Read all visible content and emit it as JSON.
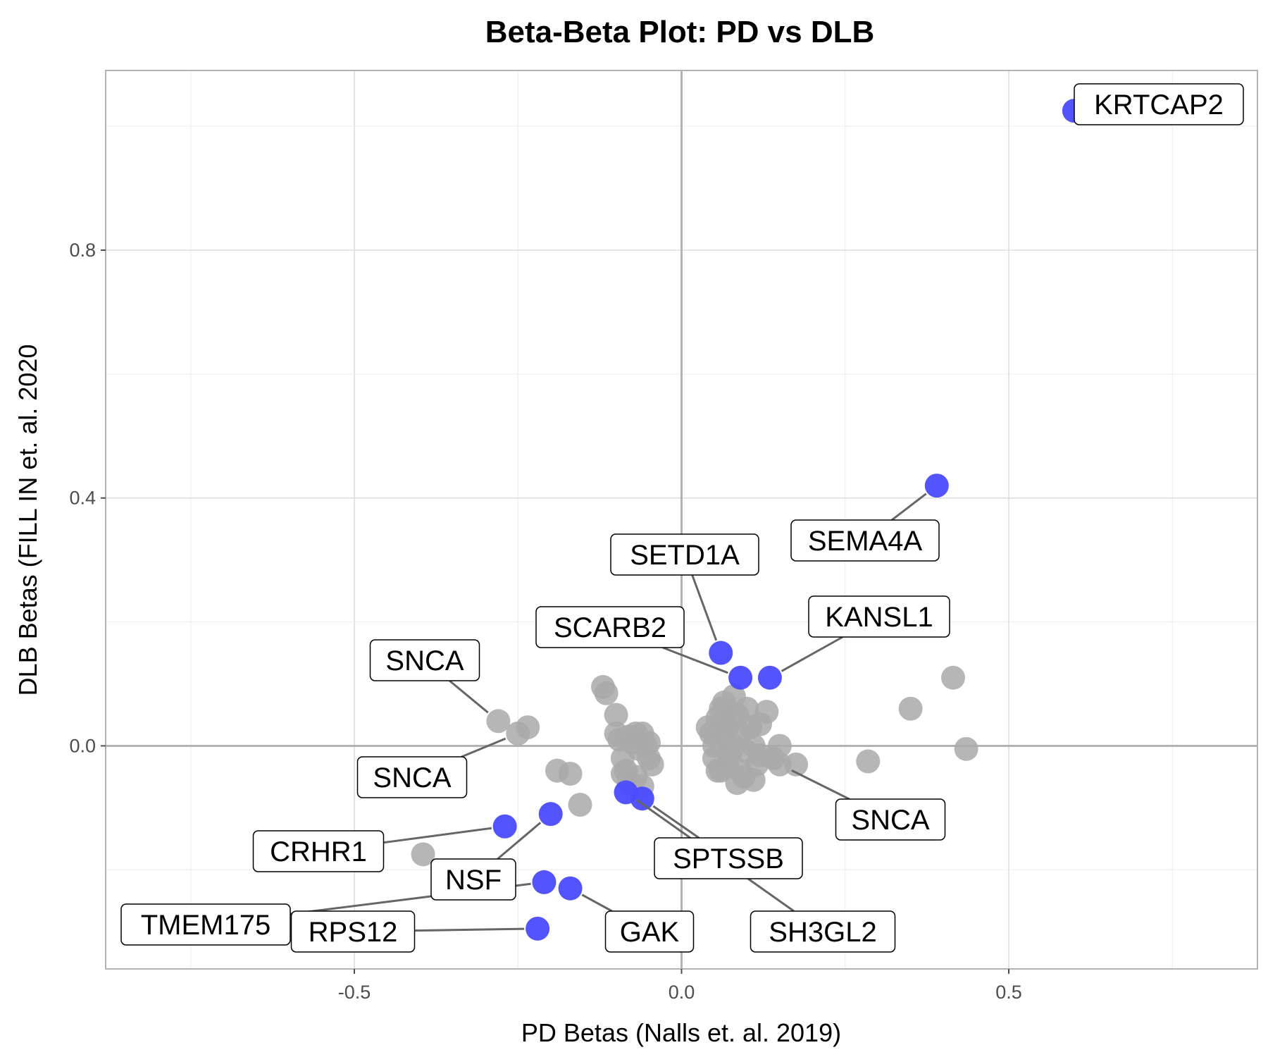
{
  "chart_data": {
    "type": "scatter",
    "title": "Beta-Beta Plot: PD vs DLB",
    "xlabel": "PD Betas (Nalls et. al. 2019)",
    "ylabel": "DLB Betas (FILL IN et. al. 2020",
    "xlim": [
      -0.88,
      0.88
    ],
    "ylim": [
      -0.36,
      1.09
    ],
    "x_ticks": [
      -0.5,
      0.0,
      0.5
    ],
    "x_tick_labels": [
      "-0.5",
      "0.0",
      "0.5"
    ],
    "y_ticks": [
      0.0,
      0.4,
      0.8
    ],
    "y_tick_labels": [
      "0.0",
      "0.4",
      "0.8"
    ],
    "grid": true,
    "reference_lines": {
      "x": 0,
      "y": 0
    },
    "colors": {
      "highlighted": "#4b4bff",
      "other": "#a9a9a9",
      "leader": "#666666"
    },
    "highlighted_points": [
      {
        "gene": "KRTCAP2",
        "x": 0.6,
        "y": 1.025
      },
      {
        "gene": "SEMA4A",
        "x": 0.39,
        "y": 0.42
      },
      {
        "gene": "SETD1A",
        "x": 0.06,
        "y": 0.15
      },
      {
        "gene": "KANSL1",
        "x": 0.135,
        "y": 0.11
      },
      {
        "gene": "SCARB2",
        "x": 0.09,
        "y": 0.11
      },
      {
        "gene": "SPTSSB",
        "x": -0.06,
        "y": -0.085
      },
      {
        "gene": "SH3GL2",
        "x": -0.085,
        "y": -0.075
      },
      {
        "gene": "CRHR1",
        "x": -0.27,
        "y": -0.13
      },
      {
        "gene": "NSF",
        "x": -0.2,
        "y": -0.11
      },
      {
        "gene": "TMEM175",
        "x": -0.21,
        "y": -0.22
      },
      {
        "gene": "GAK",
        "x": -0.17,
        "y": -0.23
      },
      {
        "gene": "RPS12",
        "x": -0.22,
        "y": -0.295
      }
    ],
    "gray_labeled_points": [
      {
        "gene": "SNCA",
        "x": -0.28,
        "y": 0.04
      },
      {
        "gene": "SNCA",
        "x": -0.25,
        "y": 0.02
      },
      {
        "gene": "SNCA",
        "x": 0.15,
        "y": -0.03
      }
    ],
    "other_points": [
      [
        -0.235,
        0.03
      ],
      [
        -0.395,
        -0.175
      ],
      [
        -0.19,
        -0.04
      ],
      [
        -0.17,
        -0.045
      ],
      [
        -0.155,
        -0.095
      ],
      [
        -0.12,
        0.095
      ],
      [
        -0.115,
        0.085
      ],
      [
        -0.1,
        0.05
      ],
      [
        -0.1,
        0.02
      ],
      [
        -0.095,
        0.01
      ],
      [
        -0.09,
        -0.02
      ],
      [
        -0.085,
        -0.04
      ],
      [
        -0.08,
        0.015
      ],
      [
        -0.075,
        0.005
      ],
      [
        -0.07,
        0.02
      ],
      [
        -0.065,
        -0.005
      ],
      [
        -0.06,
        0.02
      ],
      [
        -0.055,
        0.0
      ],
      [
        -0.05,
        0.005
      ],
      [
        -0.05,
        -0.02
      ],
      [
        -0.045,
        -0.03
      ],
      [
        -0.07,
        -0.05
      ],
      [
        -0.08,
        -0.06
      ],
      [
        -0.06,
        -0.065
      ],
      [
        -0.09,
        -0.045
      ],
      [
        0.04,
        0.03
      ],
      [
        0.045,
        0.02
      ],
      [
        0.05,
        0.0
      ],
      [
        0.05,
        -0.02
      ],
      [
        0.055,
        -0.04
      ],
      [
        0.06,
        0.06
      ],
      [
        0.065,
        0.04
      ],
      [
        0.07,
        0.03
      ],
      [
        0.07,
        0.01
      ],
      [
        0.075,
        -0.01
      ],
      [
        0.08,
        0.08
      ],
      [
        0.085,
        0.05
      ],
      [
        0.09,
        0.02
      ],
      [
        0.09,
        -0.04
      ],
      [
        0.095,
        -0.05
      ],
      [
        0.1,
        0.06
      ],
      [
        0.105,
        0.03
      ],
      [
        0.11,
        0.0
      ],
      [
        0.115,
        -0.03
      ],
      [
        0.12,
        0.035
      ],
      [
        0.13,
        0.055
      ],
      [
        0.14,
        -0.02
      ],
      [
        0.15,
        0.0
      ],
      [
        0.06,
        -0.04
      ],
      [
        0.07,
        -0.03
      ],
      [
        0.065,
        0.07
      ],
      [
        0.075,
        0.05
      ],
      [
        0.085,
        -0.06
      ],
      [
        0.11,
        -0.055
      ],
      [
        0.06,
        0.02
      ],
      [
        0.055,
        0.045
      ],
      [
        0.08,
        0.0
      ],
      [
        0.1,
        -0.01
      ],
      [
        0.12,
        -0.015
      ],
      [
        0.175,
        -0.03
      ],
      [
        0.285,
        -0.025
      ],
      [
        0.35,
        0.06
      ],
      [
        0.415,
        0.11
      ],
      [
        0.435,
        -0.005
      ]
    ]
  }
}
